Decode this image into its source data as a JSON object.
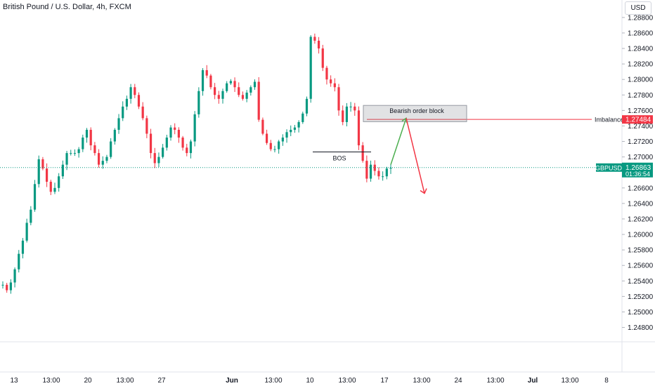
{
  "header": {
    "symbol_title": "British Pound / U.S. Dollar, 4h, FXCM",
    "currency": "USD"
  },
  "colors": {
    "up": "#089981",
    "down": "#f23645",
    "grid": "#f0f3fa",
    "axis_text": "#131722",
    "price_line": "#089981",
    "imbalance": "#f23645",
    "projection_up": "#4caf50",
    "projection_down": "#f23645"
  },
  "chart_data": {
    "type": "candlestick",
    "symbol": "GBPUSD",
    "timeframe": "4h",
    "yticks": [
      1.288,
      1.286,
      1.284,
      1.282,
      1.28,
      1.278,
      1.276,
      1.274,
      1.272,
      1.27,
      1.268,
      1.266,
      1.264,
      1.262,
      1.26,
      1.258,
      1.256,
      1.254,
      1.252,
      1.25,
      1.248
    ],
    "ylim": [
      1.2466,
      1.2898
    ],
    "xticks": [
      "13",
      "13:00",
      "20",
      "13:00",
      "27",
      "Jun",
      "13:00",
      "10",
      "13:00",
      "17",
      "13:00",
      "24",
      "13:00",
      "Jul",
      "13:00",
      "8"
    ],
    "candle_count": 106,
    "series": [
      {
        "start": 1.2535,
        "targets": [
          1.2535,
          1.2528,
          1.2538,
          1.2555,
          1.2575,
          1.2592,
          1.2615,
          1.2632,
          1.2665,
          1.2697,
          1.2685,
          1.2668,
          1.2655,
          1.266,
          1.2675,
          1.269,
          1.2705,
          1.2705,
          1.2705,
          1.271,
          1.2725,
          1.2735,
          1.2715,
          1.2705,
          1.269,
          1.2695,
          1.27,
          1.272,
          1.2735,
          1.275,
          1.2765,
          1.2775,
          1.279,
          1.278,
          1.2765,
          1.275,
          1.273,
          1.2705,
          1.2692,
          1.27,
          1.2712,
          1.2725,
          1.2738,
          1.2735,
          1.2725,
          1.2712,
          1.2705,
          1.272,
          1.2755,
          1.2785,
          1.2812,
          1.2805,
          1.279,
          1.278,
          1.2775,
          1.2785,
          1.2795,
          1.2798,
          1.279,
          1.278,
          1.2775,
          1.2783,
          1.279,
          1.2797,
          1.2748,
          1.273,
          1.2718,
          1.271,
          1.271,
          1.272,
          1.2725,
          1.2732,
          1.2735,
          1.2738,
          1.2745,
          1.2756,
          1.2775,
          1.2855,
          1.285,
          1.284,
          1.2815,
          1.28,
          1.2795,
          1.279,
          1.276,
          1.2745,
          1.2765,
          1.2765,
          1.276,
          1.2715,
          1.2695,
          1.2672,
          1.269,
          1.2682,
          1.2675,
          1.2675,
          1.2685,
          1.2686
        ]
      }
    ],
    "last_price": {
      "label": "GBPUSD",
      "value": "1.26863",
      "countdown": "01:36:54"
    },
    "annotations": {
      "order_block": {
        "label": "Bearish order block",
        "y_top": 1.27665,
        "y_bottom": 1.27455
      },
      "imbalance": {
        "label": "Imbalance",
        "value": "1.27484"
      },
      "bos": {
        "label": "BOS",
        "level": 1.27065
      },
      "projection": [
        1.269,
        1.275,
        1.2653
      ]
    }
  }
}
